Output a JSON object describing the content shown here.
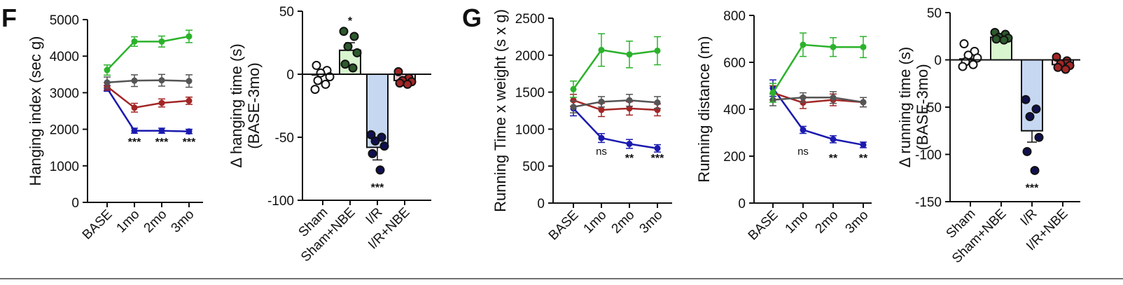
{
  "panel_labels": [
    "F",
    "G"
  ],
  "colors": {
    "Sham": "#555555",
    "Sham+NBE": "#2bb22b",
    "I/R": "#1a1ab0",
    "I/R+NBE": "#a32626",
    "bar_Sham": "#ffffff",
    "bar_Sham+NBE": "#d8f5cf",
    "bar_I/R": "#c6d7f2",
    "bar_I/R+NBE": "#f2c9cf",
    "dot_Sham": "#ffffff",
    "dot_Sham+NBE": "#2d5a2d",
    "dot_I/R": "#101050",
    "dot_I/R+NBE": "#a32626"
  },
  "chart_data": [
    {
      "type": "line",
      "ylabel": "Hanging index (sec g)",
      "x": [
        "BASE",
        "1mo",
        "2mo",
        "3mo"
      ],
      "ylim": [
        0,
        5000
      ],
      "yticks": [
        "0",
        "1000",
        "2000",
        "3000",
        "4000",
        "5000"
      ],
      "series": [
        {
          "group": "Sham",
          "values": [
            3280,
            3330,
            3340,
            3320
          ],
          "err": [
            150,
            160,
            160,
            170
          ]
        },
        {
          "group": "Sham+NBE",
          "values": [
            3620,
            4400,
            4400,
            4540
          ],
          "err": [
            140,
            130,
            150,
            170
          ]
        },
        {
          "group": "I/R",
          "values": [
            3120,
            1960,
            1960,
            1940
          ],
          "err": [
            80,
            70,
            70,
            60
          ]
        },
        {
          "group": "I/R+NBE",
          "values": [
            3170,
            2590,
            2720,
            2780
          ],
          "err": [
            100,
            120,
            110,
            100
          ]
        }
      ],
      "annotations": [
        {
          "x": "1mo",
          "text": "***"
        },
        {
          "x": "2mo",
          "text": "***"
        },
        {
          "x": "3mo",
          "text": "***"
        }
      ]
    },
    {
      "type": "bar",
      "ylabel": "Δ hanging time (s)",
      "ylabel2": "(BASE-3mo)",
      "categories": [
        "Sham",
        "Sham+NBE",
        "I/R",
        "I/R+NBE"
      ],
      "ylim": [
        -100,
        50
      ],
      "yticks": [
        "-100",
        "-50",
        "0",
        "50"
      ],
      "values": [
        0,
        19,
        -58,
        -5
      ],
      "err": [
        0,
        6,
        10,
        2
      ],
      "points": [
        [
          7,
          3,
          1,
          -2,
          -5,
          -8,
          -12
        ],
        [
          34,
          30,
          22,
          17,
          8,
          5
        ],
        [
          -48,
          -50,
          -53,
          -57,
          -63,
          -76
        ],
        [
          2,
          -3,
          -5,
          -6,
          -7,
          -8
        ]
      ],
      "annotations": [
        {
          "category": "Sham+NBE",
          "text": "*"
        },
        {
          "category": "I/R",
          "text": "***"
        }
      ]
    },
    {
      "type": "line",
      "ylabel": "Running Time x weight (s x g)",
      "x": [
        "BASE",
        "1mo",
        "2mo",
        "3mo"
      ],
      "ylim": [
        0,
        2500
      ],
      "yticks": [
        "0",
        "500",
        "1000",
        "1500",
        "2000",
        "2500"
      ],
      "series": [
        {
          "group": "Sham",
          "values": [
            1300,
            1370,
            1390,
            1360
          ],
          "err": [
            80,
            70,
            80,
            80
          ]
        },
        {
          "group": "Sham+NBE",
          "values": [
            1540,
            2070,
            2010,
            2060
          ],
          "err": [
            110,
            220,
            180,
            190
          ]
        },
        {
          "group": "I/R",
          "values": [
            1280,
            880,
            800,
            740
          ],
          "err": [
            100,
            60,
            60,
            50
          ]
        },
        {
          "group": "I/R+NBE",
          "values": [
            1390,
            1260,
            1280,
            1260
          ],
          "err": [
            80,
            90,
            90,
            80
          ]
        }
      ],
      "annotations": [
        {
          "x": "1mo",
          "text": "ns"
        },
        {
          "x": "2mo",
          "text": "**"
        },
        {
          "x": "3mo",
          "text": "***"
        }
      ]
    },
    {
      "type": "line",
      "ylabel": "Running distance  (m)",
      "x": [
        "BASE",
        "1mo",
        "2mo",
        "3mo"
      ],
      "ylim": [
        0,
        800
      ],
      "yticks": [
        "0",
        "200",
        "400",
        "600",
        "800"
      ],
      "series": [
        {
          "group": "Sham",
          "values": [
            440,
            450,
            450,
            430
          ],
          "err": [
            25,
            20,
            25,
            20
          ]
        },
        {
          "group": "Sham+NBE",
          "values": [
            470,
            675,
            665,
            665
          ],
          "err": [
            40,
            50,
            40,
            45
          ]
        },
        {
          "group": "I/R",
          "values": [
            490,
            312,
            272,
            248
          ],
          "err": [
            35,
            15,
            15,
            12
          ]
        },
        {
          "group": "I/R+NBE",
          "values": [
            470,
            428,
            440,
            430
          ],
          "err": [
            30,
            25,
            25,
            20
          ]
        }
      ],
      "annotations": [
        {
          "x": "1mo",
          "text": "ns"
        },
        {
          "x": "2mo",
          "text": "**"
        },
        {
          "x": "3mo",
          "text": "**"
        }
      ]
    },
    {
      "type": "bar",
      "ylabel": "Δ running time (s)",
      "ylabel2": "(BASE-3mo)",
      "categories": [
        "Sham",
        "Sham+NBE",
        "I/R",
        "I/R+NBE"
      ],
      "ylim": [
        -150,
        50
      ],
      "yticks": [
        "-150",
        "-100",
        "-50",
        "0",
        "50"
      ],
      "values": [
        1,
        24,
        -75,
        -5
      ],
      "err": [
        0,
        3,
        12,
        2
      ],
      "points": [
        [
          17,
          9,
          5,
          2,
          -2,
          -5,
          -7
        ],
        [
          29,
          27,
          24,
          23,
          22,
          21
        ],
        [
          -42,
          -52,
          -60,
          -82,
          -97,
          -117
        ],
        [
          3,
          -1,
          -4,
          -6,
          -8,
          -10
        ]
      ],
      "annotations": [
        {
          "category": "I/R",
          "text": "***"
        }
      ]
    }
  ]
}
